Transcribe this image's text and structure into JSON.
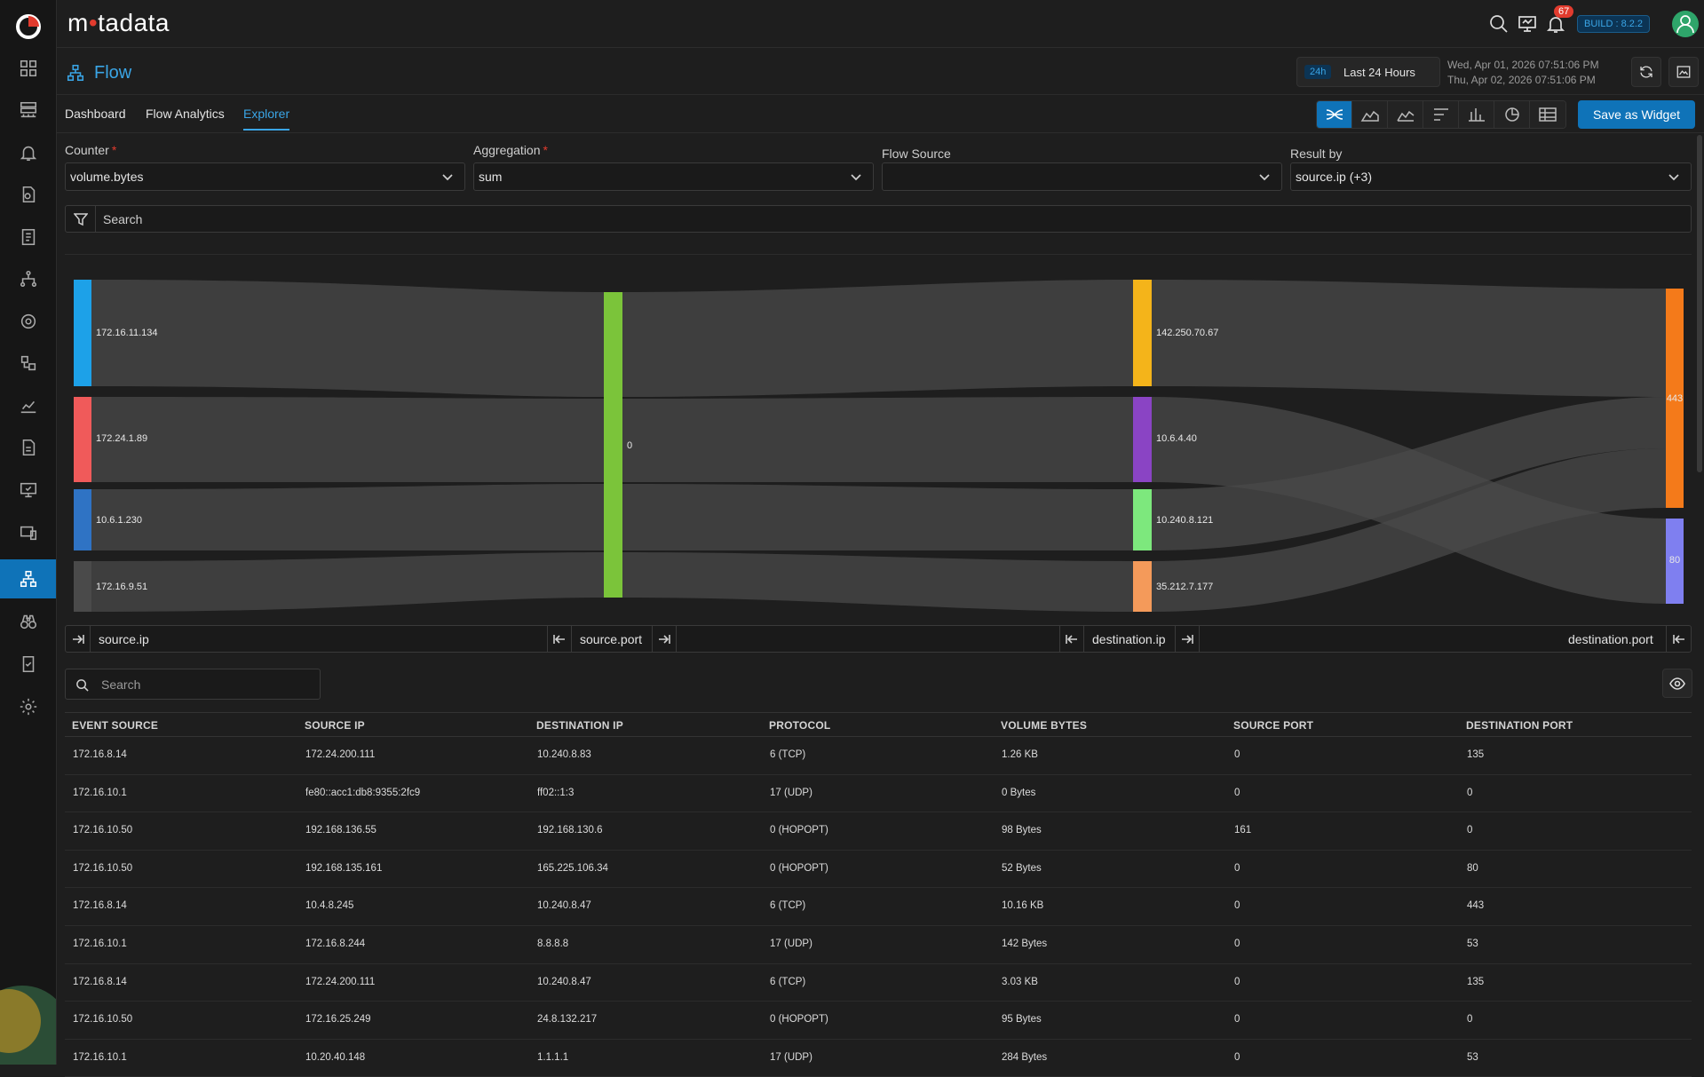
{
  "app": {
    "brand_left": "m",
    "brand_dot": "•",
    "brand_right": "tadata",
    "build": "BUILD : 8.2.2",
    "notifications": "67"
  },
  "header": {
    "title": "Flow",
    "time_short": "24h",
    "time_label": "Last 24 Hours",
    "date_from": "Wed, Apr 01, 2026 07:51:06 PM",
    "date_to": "Thu, Apr 02, 2026 07:51:06 PM"
  },
  "tabs": [
    {
      "label": "Dashboard"
    },
    {
      "label": "Flow Analytics"
    },
    {
      "label": "Explorer"
    }
  ],
  "save_widget": "Save as Widget",
  "filters": {
    "counter": {
      "label": "Counter",
      "value": "volume.bytes"
    },
    "aggregation": {
      "label": "Aggregation",
      "value": "sum"
    },
    "flow_source": {
      "label": "Flow Source",
      "value": ""
    },
    "result_by": {
      "label": "Result by",
      "value": "source.ip (+3)"
    },
    "search_placeholder": "Search"
  },
  "chart_data": {
    "type": "sankey",
    "columns": [
      "source.ip",
      "source.port",
      "destination.ip",
      "destination.port"
    ],
    "nodes": {
      "source.ip": [
        {
          "name": "172.16.11.134",
          "color": "#1da1e8"
        },
        {
          "name": "172.24.1.89",
          "color": "#f05a5a"
        },
        {
          "name": "10.6.1.230",
          "color": "#2f73c4"
        },
        {
          "name": "172.16.9.51",
          "color": "#4a4a4a"
        }
      ],
      "source.port": [
        {
          "name": "0",
          "color": "#7bc43a"
        }
      ],
      "destination.ip": [
        {
          "name": "142.250.70.67",
          "color": "#f4b41a"
        },
        {
          "name": "10.6.4.40",
          "color": "#8a44c4"
        },
        {
          "name": "10.240.8.121",
          "color": "#7de87d"
        },
        {
          "name": "35.212.7.177",
          "color": "#f49a5a"
        }
      ],
      "destination.port": [
        {
          "name": "443",
          "color": "#f47a1a"
        },
        {
          "name": "80",
          "color": "#7f7ff0"
        }
      ]
    }
  },
  "dimensions": [
    "source.ip",
    "source.port",
    "destination.ip",
    "destination.port"
  ],
  "table": {
    "search_placeholder": "Search",
    "columns": [
      "EVENT SOURCE",
      "SOURCE IP",
      "DESTINATION IP",
      "PROTOCOL",
      "VOLUME BYTES",
      "SOURCE PORT",
      "DESTINATION PORT"
    ],
    "rows": [
      [
        "172.16.8.14",
        "172.24.200.111",
        "10.240.8.83",
        "6 (TCP)",
        "1.26 KB",
        "0",
        "135"
      ],
      [
        "172.16.10.1",
        "fe80::acc1:db8:9355:2fc9",
        "ff02::1:3",
        "17 (UDP)",
        "0 Bytes",
        "0",
        "0"
      ],
      [
        "172.16.10.50",
        "192.168.136.55",
        "192.168.130.6",
        "0 (HOPOPT)",
        "98 Bytes",
        "161",
        "0"
      ],
      [
        "172.16.10.50",
        "192.168.135.161",
        "165.225.106.34",
        "0 (HOPOPT)",
        "52 Bytes",
        "0",
        "80"
      ],
      [
        "172.16.8.14",
        "10.4.8.245",
        "10.240.8.47",
        "6 (TCP)",
        "10.16 KB",
        "0",
        "443"
      ],
      [
        "172.16.10.1",
        "172.16.8.244",
        "8.8.8.8",
        "17 (UDP)",
        "142 Bytes",
        "0",
        "53"
      ],
      [
        "172.16.8.14",
        "172.24.200.111",
        "10.240.8.47",
        "6 (TCP)",
        "3.03 KB",
        "0",
        "135"
      ],
      [
        "172.16.10.50",
        "172.16.25.249",
        "24.8.132.217",
        "0 (HOPOPT)",
        "95 Bytes",
        "0",
        "0"
      ],
      [
        "172.16.10.1",
        "10.20.40.148",
        "1.1.1.1",
        "17 (UDP)",
        "284 Bytes",
        "0",
        "53"
      ]
    ]
  }
}
